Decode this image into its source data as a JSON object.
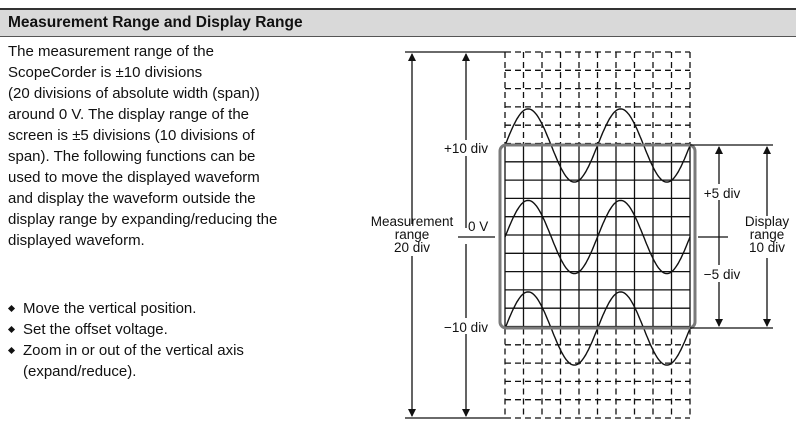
{
  "section": {
    "title": "Measurement Range and Display Range"
  },
  "paragraph_lines": [
    "The measurement range of the",
    "ScopeCorder is ±10 divisions",
    "(20 divisions of absolute width (span))",
    "around 0 V. The display range of the",
    "screen is ±5 divisions (10 divisions of",
    "span). The following functions can be",
    "used to move the displayed waveform",
    "and display the waveform outside the",
    "display range by expanding/reducing the",
    "displayed waveform."
  ],
  "bullets": [
    {
      "lines": [
        "Move the vertical position."
      ]
    },
    {
      "lines": [
        "Set the offset voltage."
      ]
    },
    {
      "lines": [
        "Zoom in or out of the vertical axis",
        "(expand/reduce)."
      ]
    }
  ],
  "diagram": {
    "labels": {
      "plus10": "+10 div",
      "minus10": "−10 div",
      "zero": "0 V",
      "plus5": "+5 div",
      "minus5": "−5 div",
      "measurement_range": [
        "Measurement",
        "range",
        "20 div"
      ],
      "display_range": [
        "Display",
        "range",
        "10 div"
      ]
    },
    "measurement_range_div": 20,
    "display_range_div": 10,
    "horizontal_div": 10,
    "waveform_offsets_div": [
      5,
      0,
      -5
    ],
    "waveform_amplitude_div": 2,
    "waveform_period_div": 5,
    "colors": {
      "display_frame": "#7a7a7a",
      "header_bg": "#d9d9d9"
    }
  }
}
